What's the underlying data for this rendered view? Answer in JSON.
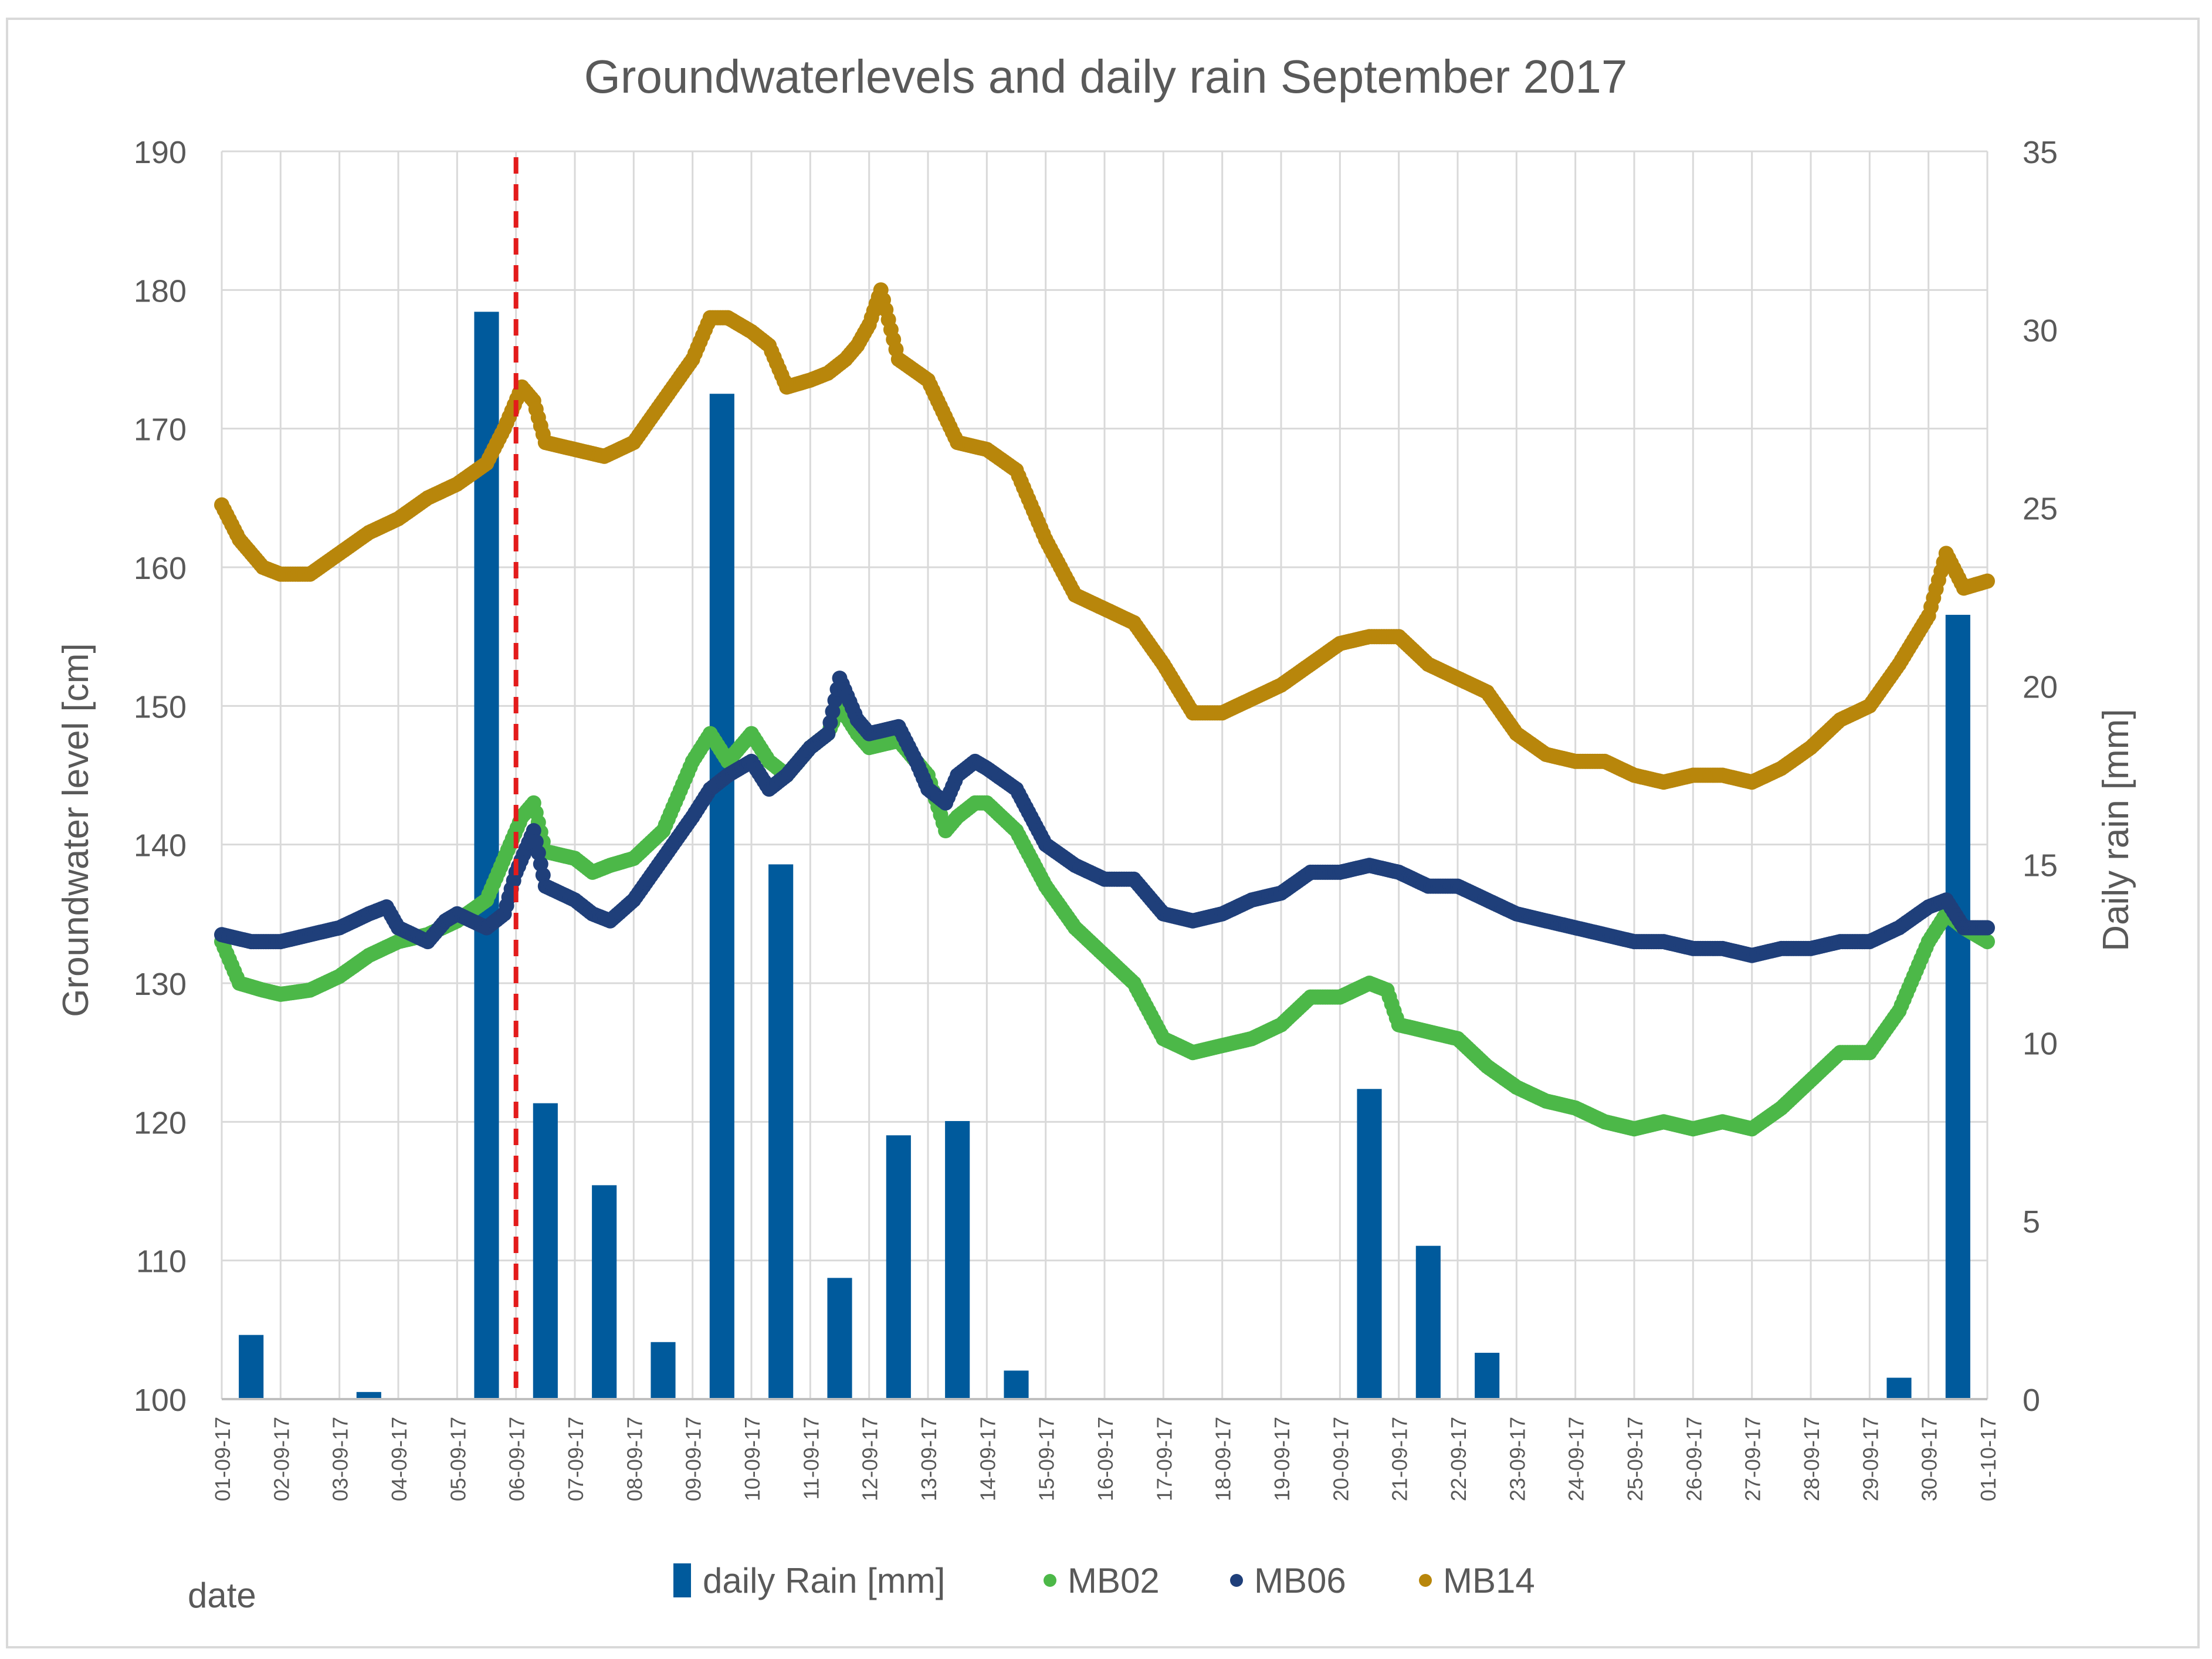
{
  "chart_data": {
    "type": "bar+scatter",
    "title": "Groundwaterlevels and daily rain September 2017",
    "ylabel": "Groundwater level [cm]",
    "y2label": "Daily rain [mm]",
    "xlabel": "date",
    "ylim": [
      100,
      190
    ],
    "yticks": [
      100,
      110,
      120,
      130,
      140,
      150,
      160,
      170,
      180,
      190
    ],
    "y2lim": [
      0,
      35
    ],
    "y2ticks": [
      0,
      5,
      10,
      15,
      20,
      25,
      30,
      35
    ],
    "categories": [
      "01-09-17",
      "02-09-17",
      "03-09-17",
      "04-09-17",
      "05-09-17",
      "06-09-17",
      "07-09-17",
      "08-09-17",
      "09-09-17",
      "10-09-17",
      "11-09-17",
      "12-09-17",
      "13-09-17",
      "14-09-17",
      "15-09-17",
      "16-09-17",
      "17-09-17",
      "18-09-17",
      "19-09-17",
      "20-09-17",
      "21-09-17",
      "22-09-17",
      "23-09-17",
      "24-09-17",
      "25-09-17",
      "26-09-17",
      "27-09-17",
      "28-09-17",
      "29-09-17",
      "30-09-17",
      "01-10-17"
    ],
    "marker_line_day": 5.0,
    "rain": {
      "name": "daily Rain [mm]",
      "color": "#005a9c",
      "values": [
        1.8,
        0,
        0.2,
        0,
        30.5,
        8.3,
        6.0,
        1.6,
        28.2,
        15.0,
        3.4,
        7.4,
        7.8,
        0.8,
        0,
        0,
        0,
        0,
        0,
        8.7,
        4.3,
        1.3,
        0,
        0,
        0,
        0,
        0,
        0,
        0.6,
        22.0
      ]
    },
    "series": [
      {
        "name": "MB02",
        "color": "#4cb848",
        "points": [
          [
            0,
            133
          ],
          [
            0.3,
            130
          ],
          [
            0.7,
            129.5
          ],
          [
            1,
            129.2
          ],
          [
            1.5,
            129.5
          ],
          [
            2,
            130.5
          ],
          [
            2.5,
            132
          ],
          [
            3,
            133
          ],
          [
            3.5,
            133.5
          ],
          [
            4,
            134.5
          ],
          [
            4.5,
            136
          ],
          [
            4.9,
            140
          ],
          [
            5.1,
            142
          ],
          [
            5.3,
            143
          ],
          [
            5.5,
            139.5
          ],
          [
            6,
            139
          ],
          [
            6.3,
            138
          ],
          [
            6.6,
            138.5
          ],
          [
            7,
            139
          ],
          [
            7.5,
            141
          ],
          [
            8,
            146
          ],
          [
            8.3,
            148
          ],
          [
            8.6,
            146
          ],
          [
            9,
            148
          ],
          [
            9.3,
            146
          ],
          [
            9.6,
            145
          ],
          [
            10,
            147
          ],
          [
            10.3,
            148
          ],
          [
            10.5,
            150
          ],
          [
            10.8,
            148
          ],
          [
            11,
            147
          ],
          [
            11.5,
            147.5
          ],
          [
            12,
            145
          ],
          [
            12.3,
            141
          ],
          [
            12.5,
            142
          ],
          [
            12.8,
            143
          ],
          [
            13,
            143
          ],
          [
            13.5,
            141
          ],
          [
            14,
            137
          ],
          [
            14.5,
            134
          ],
          [
            15,
            132
          ],
          [
            15.5,
            130
          ],
          [
            16,
            126
          ],
          [
            16.5,
            125
          ],
          [
            17,
            125.5
          ],
          [
            17.5,
            126
          ],
          [
            18,
            127
          ],
          [
            18.5,
            129
          ],
          [
            19,
            129
          ],
          [
            19.5,
            130
          ],
          [
            19.8,
            129.5
          ],
          [
            20,
            127
          ],
          [
            20.5,
            126.5
          ],
          [
            21,
            126
          ],
          [
            21.5,
            124
          ],
          [
            22,
            122.5
          ],
          [
            22.5,
            121.5
          ],
          [
            23,
            121
          ],
          [
            23.5,
            120
          ],
          [
            24,
            119.5
          ],
          [
            24.5,
            120
          ],
          [
            25,
            119.5
          ],
          [
            25.5,
            120
          ],
          [
            26,
            119.5
          ],
          [
            26.5,
            121
          ],
          [
            27,
            123
          ],
          [
            27.5,
            125
          ],
          [
            28,
            125
          ],
          [
            28.5,
            128
          ],
          [
            29,
            133
          ],
          [
            29.3,
            135
          ],
          [
            29.6,
            134
          ],
          [
            30,
            133
          ]
        ]
      },
      {
        "name": "MB06",
        "color": "#1f3f7a",
        "points": [
          [
            0,
            133.5
          ],
          [
            0.5,
            133
          ],
          [
            1,
            133
          ],
          [
            1.5,
            133.5
          ],
          [
            2,
            134
          ],
          [
            2.5,
            135
          ],
          [
            2.8,
            135.5
          ],
          [
            3,
            134
          ],
          [
            3.5,
            133
          ],
          [
            3.8,
            134.5
          ],
          [
            4,
            135
          ],
          [
            4.5,
            134
          ],
          [
            4.8,
            135
          ],
          [
            5,
            138
          ],
          [
            5.3,
            141
          ],
          [
            5.5,
            137
          ],
          [
            6,
            136
          ],
          [
            6.3,
            135
          ],
          [
            6.6,
            134.5
          ],
          [
            7,
            136
          ],
          [
            7.5,
            139
          ],
          [
            8,
            142
          ],
          [
            8.3,
            144
          ],
          [
            8.6,
            145
          ],
          [
            9,
            146
          ],
          [
            9.3,
            144
          ],
          [
            9.6,
            145
          ],
          [
            10,
            147
          ],
          [
            10.3,
            148
          ],
          [
            10.5,
            152
          ],
          [
            10.8,
            149
          ],
          [
            11,
            148
          ],
          [
            11.5,
            148.5
          ],
          [
            11.8,
            146
          ],
          [
            12,
            144
          ],
          [
            12.3,
            143
          ],
          [
            12.5,
            145
          ],
          [
            12.8,
            146
          ],
          [
            13,
            145.5
          ],
          [
            13.5,
            144
          ],
          [
            14,
            140
          ],
          [
            14.5,
            138.5
          ],
          [
            15,
            137.5
          ],
          [
            15.5,
            137.5
          ],
          [
            16,
            135
          ],
          [
            16.5,
            134.5
          ],
          [
            17,
            135
          ],
          [
            17.5,
            136
          ],
          [
            18,
            136.5
          ],
          [
            18.5,
            138
          ],
          [
            19,
            138
          ],
          [
            19.5,
            138.5
          ],
          [
            20,
            138
          ],
          [
            20.5,
            137
          ],
          [
            21,
            137
          ],
          [
            21.5,
            136
          ],
          [
            22,
            135
          ],
          [
            22.5,
            134.5
          ],
          [
            23,
            134
          ],
          [
            23.5,
            133.5
          ],
          [
            24,
            133
          ],
          [
            24.5,
            133
          ],
          [
            25,
            132.5
          ],
          [
            25.5,
            132.5
          ],
          [
            26,
            132
          ],
          [
            26.5,
            132.5
          ],
          [
            27,
            132.5
          ],
          [
            27.5,
            133
          ],
          [
            28,
            133
          ],
          [
            28.5,
            134
          ],
          [
            29,
            135.5
          ],
          [
            29.3,
            136
          ],
          [
            29.6,
            134
          ],
          [
            30,
            134
          ]
        ]
      },
      {
        "name": "MB14",
        "color": "#b8860b",
        "points": [
          [
            0,
            164.5
          ],
          [
            0.3,
            162
          ],
          [
            0.7,
            160
          ],
          [
            1,
            159.5
          ],
          [
            1.5,
            159.5
          ],
          [
            2,
            161
          ],
          [
            2.5,
            162.5
          ],
          [
            3,
            163.5
          ],
          [
            3.5,
            165
          ],
          [
            4,
            166
          ],
          [
            4.5,
            167.5
          ],
          [
            4.8,
            170
          ],
          [
            5.1,
            173
          ],
          [
            5.3,
            172
          ],
          [
            5.5,
            169
          ],
          [
            6,
            168.5
          ],
          [
            6.5,
            168
          ],
          [
            7,
            169
          ],
          [
            7.5,
            172
          ],
          [
            8,
            175
          ],
          [
            8.3,
            178
          ],
          [
            8.6,
            178
          ],
          [
            9,
            177
          ],
          [
            9.3,
            176
          ],
          [
            9.6,
            173
          ],
          [
            10,
            173.5
          ],
          [
            10.3,
            174
          ],
          [
            10.6,
            175
          ],
          [
            10.8,
            176
          ],
          [
            11,
            177.5
          ],
          [
            11.2,
            180
          ],
          [
            11.5,
            175
          ],
          [
            12,
            173.5
          ],
          [
            12.5,
            169
          ],
          [
            13,
            168.5
          ],
          [
            13.5,
            167
          ],
          [
            14,
            162
          ],
          [
            14.5,
            158
          ],
          [
            15,
            157
          ],
          [
            15.5,
            156
          ],
          [
            16,
            153
          ],
          [
            16.5,
            149.5
          ],
          [
            17,
            149.5
          ],
          [
            17.5,
            150.5
          ],
          [
            18,
            151.5
          ],
          [
            18.5,
            153
          ],
          [
            19,
            154.5
          ],
          [
            19.5,
            155
          ],
          [
            20,
            155
          ],
          [
            20.5,
            153
          ],
          [
            21,
            152
          ],
          [
            21.5,
            151
          ],
          [
            22,
            148
          ],
          [
            22.5,
            146.5
          ],
          [
            23,
            146
          ],
          [
            23.5,
            146
          ],
          [
            24,
            145
          ],
          [
            24.5,
            144.5
          ],
          [
            25,
            145
          ],
          [
            25.5,
            145
          ],
          [
            26,
            144.5
          ],
          [
            26.5,
            145.5
          ],
          [
            27,
            147
          ],
          [
            27.5,
            149
          ],
          [
            28,
            150
          ],
          [
            28.5,
            153
          ],
          [
            29,
            156.5
          ],
          [
            29.3,
            161
          ],
          [
            29.6,
            158.5
          ],
          [
            30,
            159
          ]
        ]
      }
    ]
  }
}
